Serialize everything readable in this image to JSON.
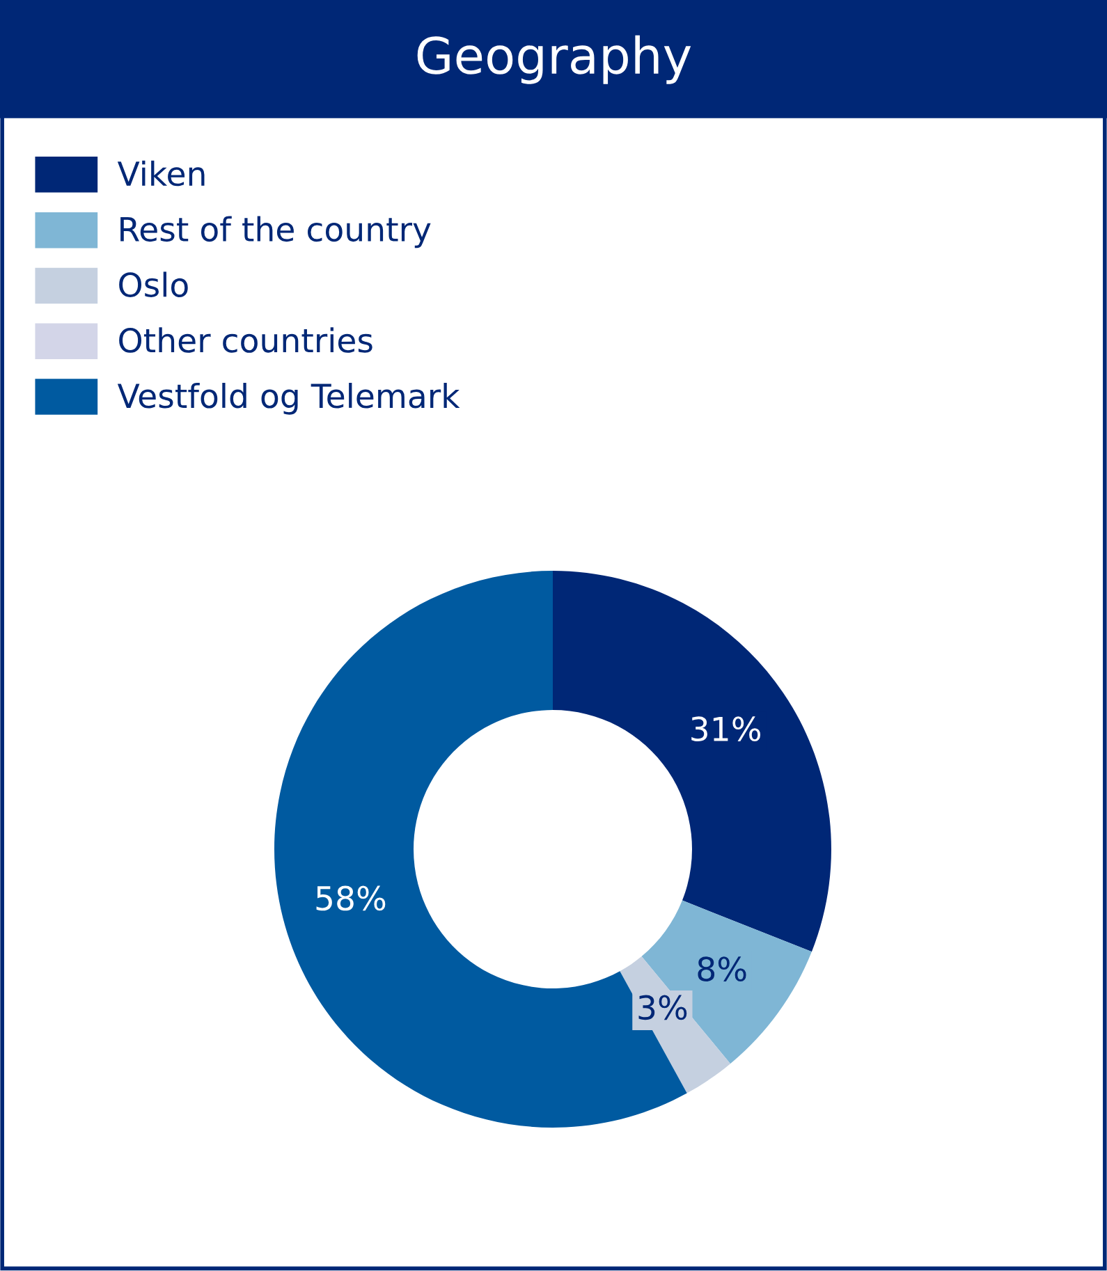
{
  "chart_data": {
    "type": "donut",
    "title": "Geography",
    "categories": [
      "Viken",
      "Rest of the country",
      "Oslo",
      "Other countries",
      "Vestfold og Telemark"
    ],
    "values": [
      31,
      8,
      3,
      0,
      58
    ],
    "colors": [
      "#002776",
      "#7fb6d5",
      "#c5d0e0",
      "#d3d5e8",
      "#005aa0"
    ],
    "value_labels": [
      "31%",
      "8%",
      "3%",
      null,
      "58%"
    ],
    "legend": "top left"
  }
}
